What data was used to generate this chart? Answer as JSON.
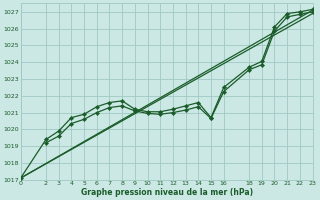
{
  "title": "Graphe pression niveau de la mer (hPa)",
  "bg_color": "#cce8e4",
  "grid_color": "#a0c8c4",
  "line_color": "#1a5c2a",
  "ylim": [
    1017,
    1027.5
  ],
  "xlim": [
    0,
    23
  ],
  "yticks": [
    1017,
    1018,
    1019,
    1020,
    1021,
    1022,
    1023,
    1024,
    1025,
    1026,
    1027
  ],
  "xticks": [
    0,
    2,
    3,
    4,
    5,
    6,
    7,
    8,
    9,
    10,
    11,
    12,
    13,
    14,
    15,
    16,
    18,
    19,
    20,
    21,
    22,
    23
  ],
  "series": [
    {
      "x": [
        0,
        23
      ],
      "y": [
        1017.1,
        1027.1
      ],
      "marker": false,
      "lw": 0.9
    },
    {
      "x": [
        0,
        23
      ],
      "y": [
        1017.1,
        1026.9
      ],
      "marker": false,
      "lw": 0.9
    },
    {
      "x": [
        0,
        2,
        3,
        4,
        5,
        6,
        7,
        8,
        9,
        10,
        11,
        12,
        13,
        14,
        15,
        16,
        18,
        19,
        20,
        21,
        22,
        23
      ],
      "y": [
        1017.1,
        1019.4,
        1019.9,
        1020.7,
        1020.9,
        1021.35,
        1021.6,
        1021.7,
        1021.2,
        1021.05,
        1021.05,
        1021.2,
        1021.4,
        1021.6,
        1020.7,
        1022.5,
        1023.7,
        1024.05,
        1026.1,
        1026.9,
        1027.0,
        1027.15
      ],
      "marker": true,
      "lw": 0.9
    },
    {
      "x": [
        2,
        3,
        4,
        5,
        6,
        7,
        8,
        9,
        10,
        11,
        12,
        13,
        14,
        15,
        16,
        18,
        19,
        20,
        21,
        22,
        23
      ],
      "y": [
        1019.2,
        1019.6,
        1020.35,
        1020.6,
        1021.0,
        1021.3,
        1021.4,
        1021.1,
        1020.95,
        1020.9,
        1021.0,
        1021.15,
        1021.35,
        1020.65,
        1022.25,
        1023.55,
        1023.85,
        1025.85,
        1026.7,
        1026.85,
        1027.0
      ],
      "marker": true,
      "lw": 0.9
    }
  ]
}
